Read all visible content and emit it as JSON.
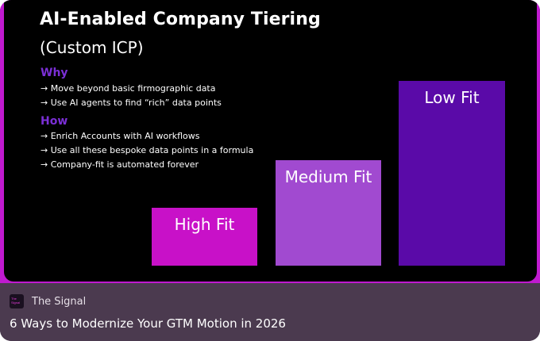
{
  "slide": {
    "title": "AI-Enabled Company Tiering",
    "subtitle": "(Custom ICP)",
    "why_heading": "Why",
    "why_points": [
      "→ Move beyond basic firmographic data",
      "→ Use AI agents to find “rich” data points"
    ],
    "how_heading": "How",
    "how_points": [
      "→ Enrich Accounts with AI workflows",
      "→ Use all these bespoke data points in a formula",
      "→ Company-fit is automated forever"
    ],
    "bars": [
      {
        "label": "High Fit",
        "color": "#c811c8"
      },
      {
        "label": "Medium Fit",
        "color": "#a14ad0"
      },
      {
        "label": "Low Fit",
        "color": "#5a0aa8"
      }
    ]
  },
  "footer": {
    "logo_text": "The Signal",
    "source": "The Signal",
    "headline": "6 Ways to Modernize Your GTM Motion in 2026"
  }
}
